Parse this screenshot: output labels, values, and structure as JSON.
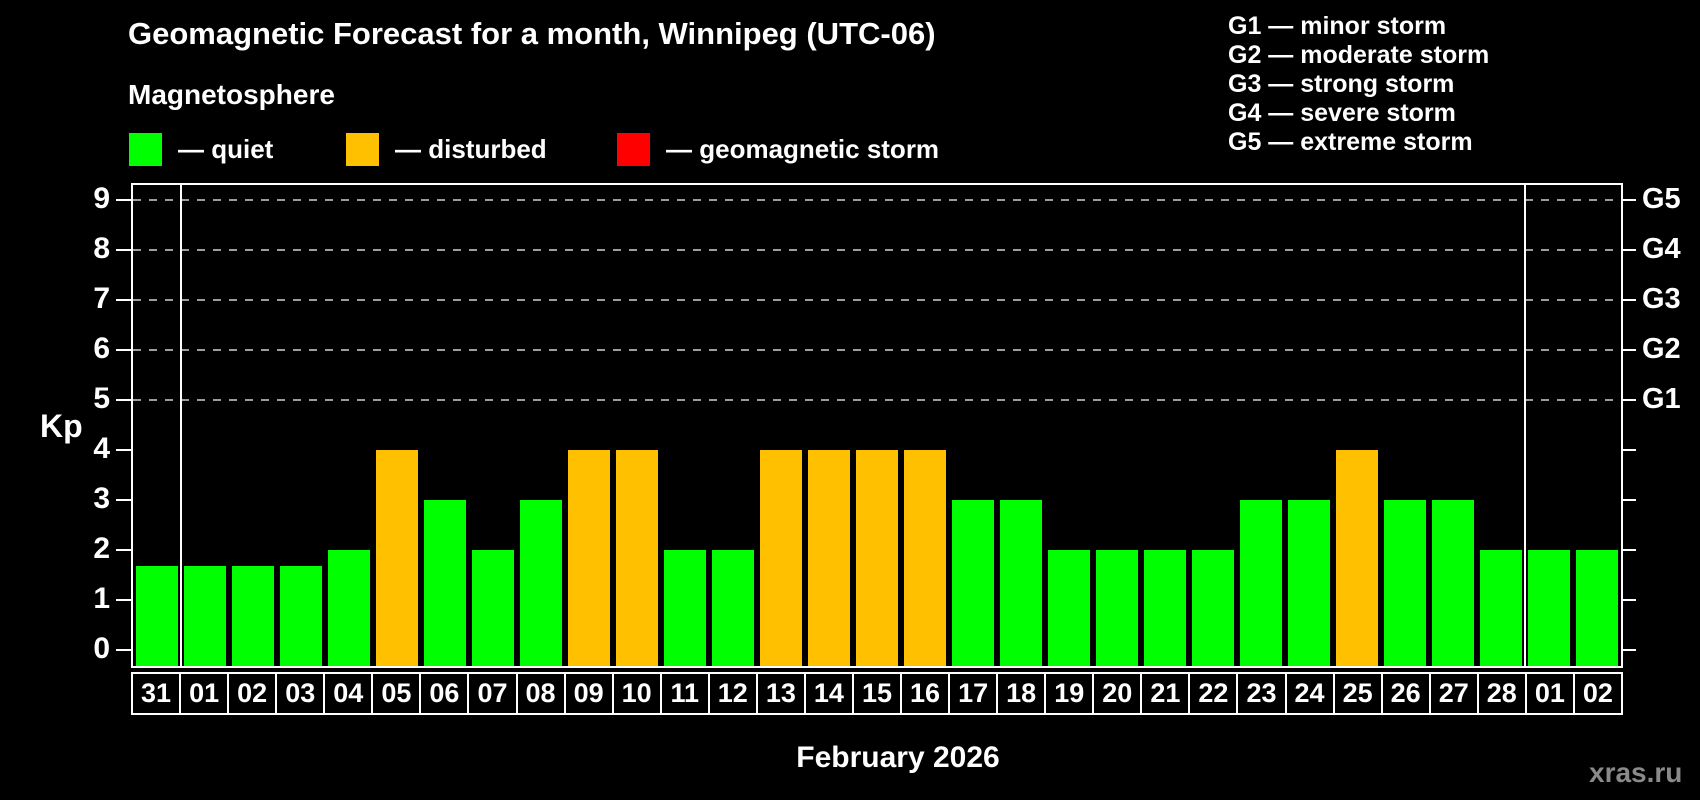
{
  "title": "Geomagnetic Forecast for a month, Winnipeg (UTC-06)",
  "subtitle": "Magnetosphere",
  "legend": {
    "items": [
      {
        "name": "quiet",
        "label": "— quiet",
        "color": "#00ff00"
      },
      {
        "name": "disturbed",
        "label": "— disturbed",
        "color": "#ffc000"
      },
      {
        "name": "storm",
        "label": "— geomagnetic storm",
        "color": "#ff0000"
      }
    ]
  },
  "g_scale_legend": {
    "lines": [
      "G1 — minor storm",
      "G2 — moderate storm",
      "G3 — strong storm",
      "G4 — severe storm",
      "G5 — extreme storm"
    ]
  },
  "footer": {
    "month_label": "February 2026",
    "watermark": "xras.ru"
  },
  "chart_data": {
    "type": "bar",
    "title": "Geomagnetic Forecast for a month, Winnipeg (UTC-06)",
    "ylabel": "Kp",
    "xlabel": "February 2026",
    "ylim": [
      0,
      9
    ],
    "grid": "horizontal dashed lines at Kp 5,6,7,8,9",
    "legend_position": "top-left",
    "yticks_left": [
      0,
      1,
      2,
      3,
      4,
      5,
      6,
      7,
      8,
      9
    ],
    "yticks_right": [
      {
        "kp": 5,
        "label": "G1"
      },
      {
        "kp": 6,
        "label": "G2"
      },
      {
        "kp": 7,
        "label": "G3"
      },
      {
        "kp": 8,
        "label": "G4"
      },
      {
        "kp": 9,
        "label": "G5"
      }
    ],
    "categories": [
      "31",
      "01",
      "02",
      "03",
      "04",
      "05",
      "06",
      "07",
      "08",
      "09",
      "10",
      "11",
      "12",
      "13",
      "14",
      "15",
      "16",
      "17",
      "18",
      "19",
      "20",
      "21",
      "22",
      "23",
      "24",
      "25",
      "26",
      "27",
      "28",
      "01",
      "02"
    ],
    "values": [
      1.67,
      1.67,
      1.67,
      1.67,
      2,
      4,
      3,
      2,
      3,
      4,
      4,
      2,
      2,
      4,
      4,
      4,
      4,
      3,
      3,
      2,
      2,
      2,
      2,
      3,
      3,
      4,
      3,
      3,
      2,
      2,
      2
    ],
    "statuses": [
      "quiet",
      "quiet",
      "quiet",
      "quiet",
      "quiet",
      "disturbed",
      "quiet",
      "quiet",
      "quiet",
      "disturbed",
      "disturbed",
      "quiet",
      "quiet",
      "disturbed",
      "disturbed",
      "disturbed",
      "disturbed",
      "quiet",
      "quiet",
      "quiet",
      "quiet",
      "quiet",
      "quiet",
      "quiet",
      "quiet",
      "disturbed",
      "quiet",
      "quiet",
      "quiet",
      "quiet",
      "quiet"
    ],
    "status_colors": {
      "quiet": "#00ff00",
      "disturbed": "#ffc000",
      "storm": "#ff0000"
    },
    "month_separators_after_index": [
      0,
      28
    ]
  }
}
